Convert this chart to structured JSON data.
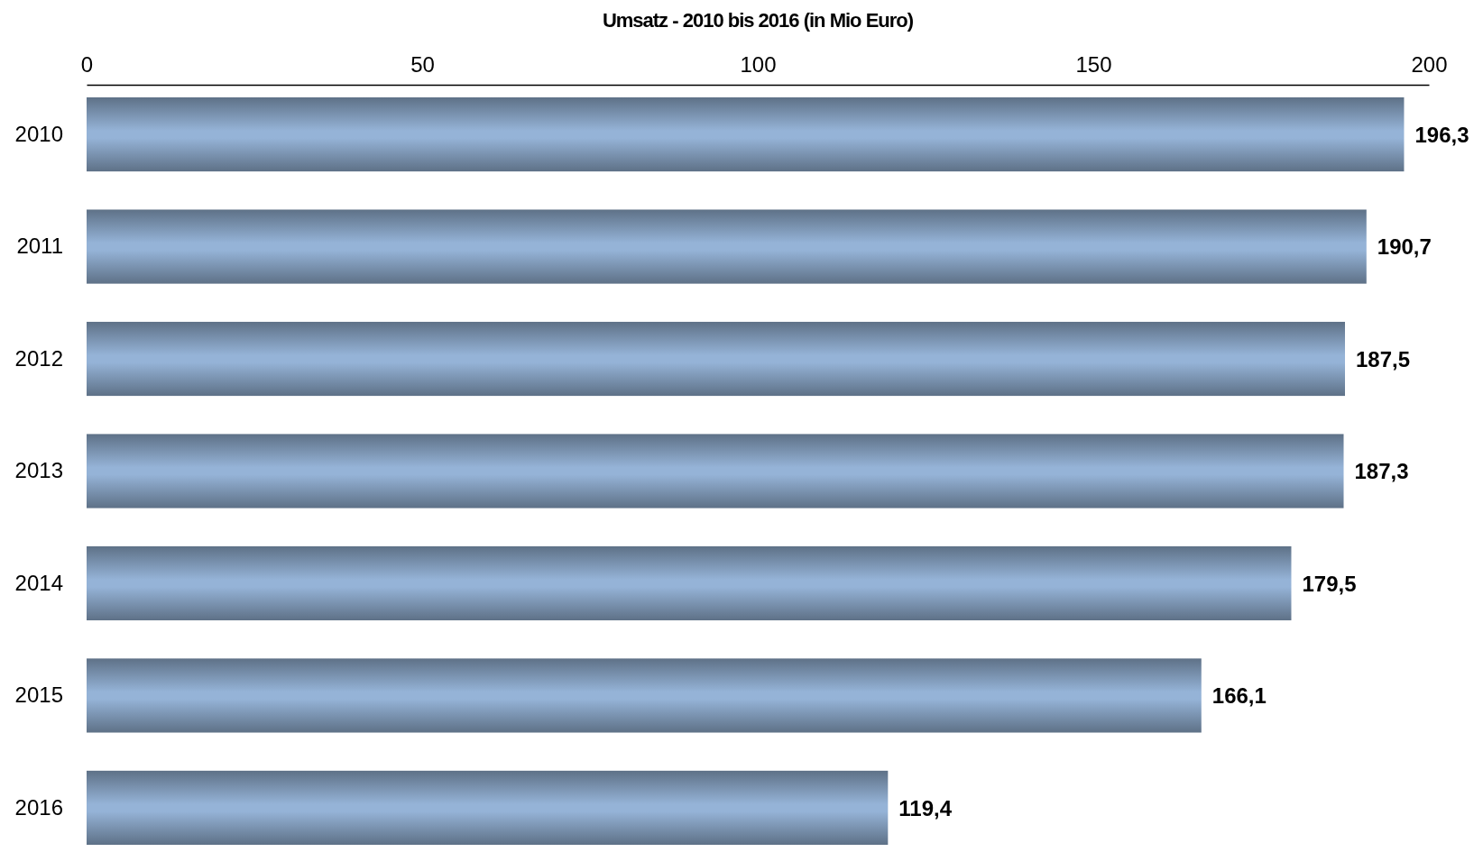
{
  "chart_data": {
    "type": "bar",
    "orientation": "horizontal",
    "title": "Umsatz -  2010 bis 2016 (in Mio Euro)",
    "categories": [
      "2010",
      "2011",
      "2012",
      "2013",
      "2014",
      "2015",
      "2016"
    ],
    "values": [
      196.3,
      190.7,
      187.5,
      187.3,
      179.5,
      166.1,
      119.4
    ],
    "value_labels": [
      "196,3",
      "190,7",
      "187,5",
      "187,3",
      "179,5",
      "166,1",
      "119,4"
    ],
    "color": "#95b3d7",
    "xlim": [
      0,
      200
    ],
    "xticks": [
      0,
      50,
      100,
      150,
      200
    ],
    "grid": false
  }
}
